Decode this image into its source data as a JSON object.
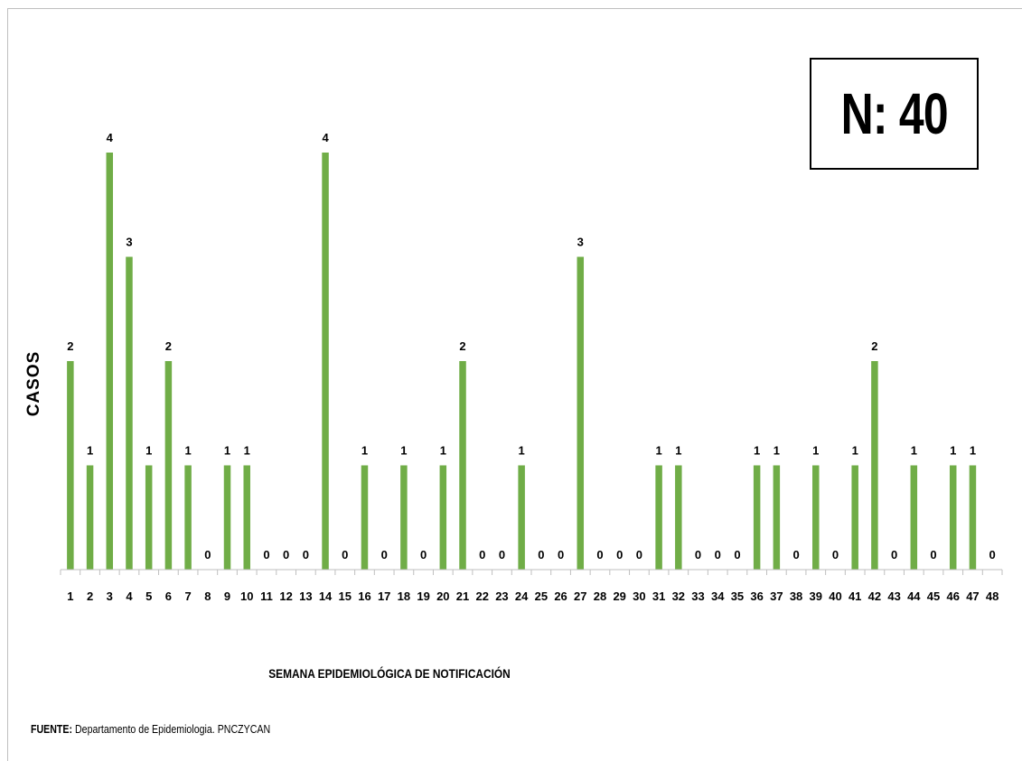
{
  "chart_data": {
    "type": "bar",
    "title": "",
    "xlabel": "SEMANA EPIDEMIOLÓGICA DE NOTIFICACIÓN",
    "ylabel": "CASOS",
    "categories": [
      "1",
      "2",
      "3",
      "4",
      "5",
      "6",
      "7",
      "8",
      "9",
      "10",
      "11",
      "12",
      "13",
      "14",
      "15",
      "16",
      "17",
      "18",
      "19",
      "20",
      "21",
      "22",
      "23",
      "24",
      "25",
      "26",
      "27",
      "28",
      "29",
      "30",
      "31",
      "32",
      "33",
      "34",
      "35",
      "36",
      "37",
      "38",
      "39",
      "40",
      "41",
      "42",
      "43",
      "44",
      "45",
      "46",
      "47",
      "48"
    ],
    "values": [
      2,
      1,
      4,
      3,
      1,
      2,
      1,
      0,
      1,
      1,
      0,
      0,
      0,
      4,
      0,
      1,
      0,
      1,
      0,
      1,
      2,
      0,
      0,
      1,
      0,
      0,
      3,
      0,
      0,
      0,
      1,
      1,
      0,
      0,
      0,
      1,
      1,
      0,
      1,
      0,
      1,
      2,
      0,
      1,
      0,
      1,
      1,
      0
    ],
    "ylim": [
      0,
      4
    ],
    "grid": false,
    "legend": "none",
    "bar_color": "#70ad47",
    "data_labels": true
  },
  "annotation": {
    "total_label": "N: 40"
  },
  "source": {
    "prefix": "FUENTE:",
    "text": " Departamento de Epidemiologia. PNCZYCAN"
  }
}
